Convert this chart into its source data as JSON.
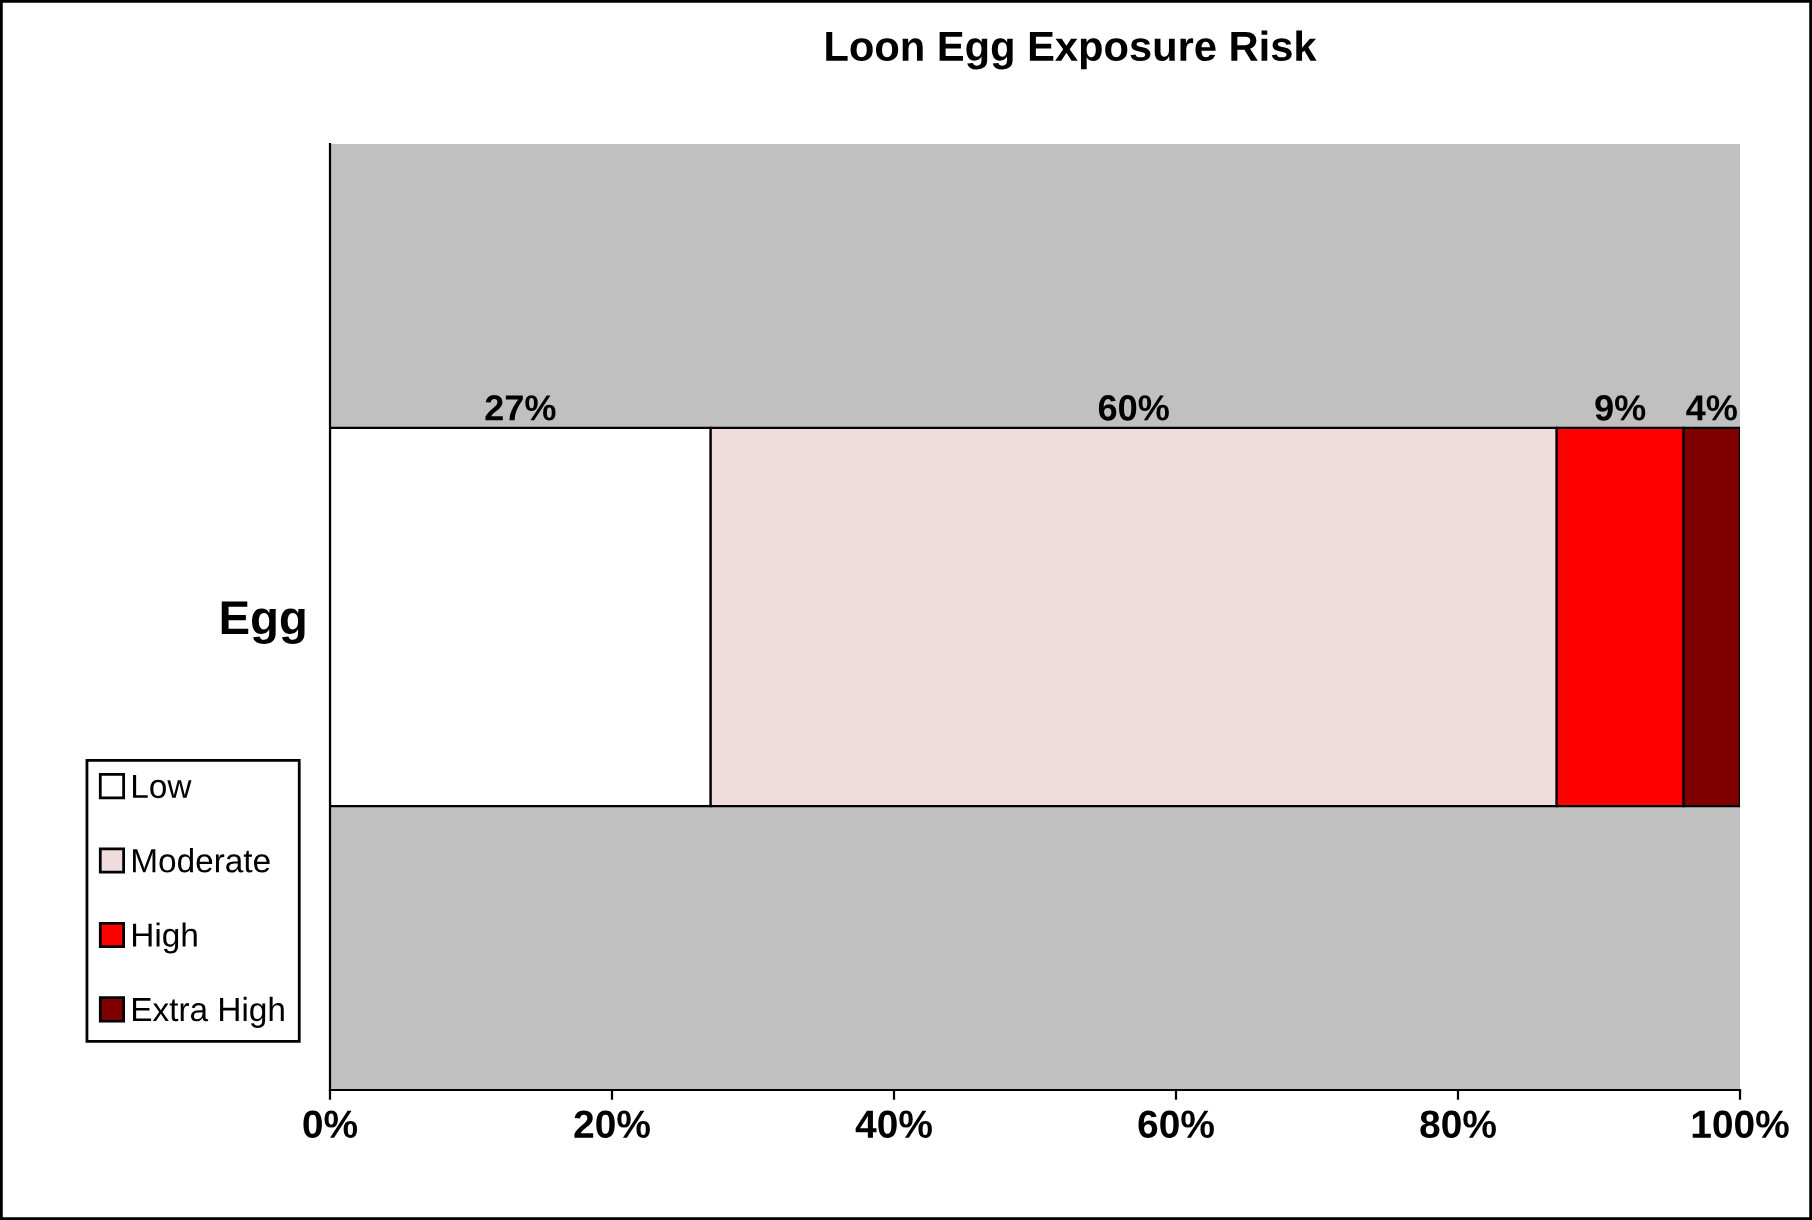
{
  "chart_data": {
    "type": "bar",
    "orientation": "horizontal",
    "stacked": true,
    "title": "Loon Egg Exposure Risk",
    "categories": [
      "Egg"
    ],
    "series": [
      {
        "name": "Low",
        "color": "#ffffff",
        "values": [
          27
        ],
        "value_labels": [
          "27%"
        ]
      },
      {
        "name": "Moderate",
        "color": "#f0dcdc",
        "values": [
          60
        ],
        "value_labels": [
          "60%"
        ]
      },
      {
        "name": "High",
        "color": "#ff0000",
        "values": [
          9
        ],
        "value_labels": [
          "9%"
        ]
      },
      {
        "name": "Extra High",
        "color": "#800000",
        "values": [
          4
        ],
        "value_labels": [
          "4%"
        ]
      }
    ],
    "xlim": [
      0,
      100
    ],
    "xticks": [
      {
        "value": 0,
        "label": "0%"
      },
      {
        "value": 20,
        "label": "20%"
      },
      {
        "value": 40,
        "label": "40%"
      },
      {
        "value": 60,
        "label": "60%"
      },
      {
        "value": 80,
        "label": "80%"
      },
      {
        "value": 100,
        "label": "100%"
      }
    ],
    "grid": false,
    "legend": "left"
  }
}
